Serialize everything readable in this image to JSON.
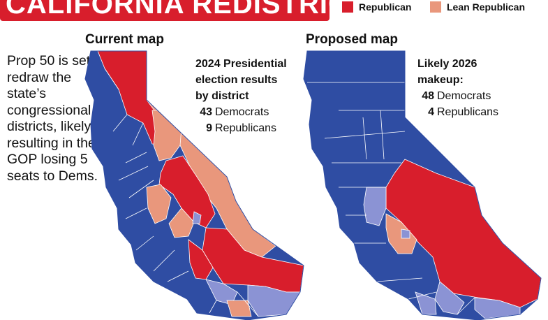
{
  "banner": {
    "title": "CALIFORNIA REDISTRICTING"
  },
  "legend": [
    {
      "label": "Republican",
      "color": "#d81e2c"
    },
    {
      "label": "Lean Republican",
      "color": "#e9977c"
    }
  ],
  "colors": {
    "democrat": "#2f4da3",
    "lean_democrat": "#8b93d4",
    "republican": "#d81e2c",
    "lean_republican": "#e9977c",
    "district_lines": "#ffffff"
  },
  "blurb": "Prop 50 is set to redraw the state’s congressional districts, likely resulting in the GOP losing 5 seats to Dems.",
  "current_map": {
    "title": "Current map",
    "subtitle": "2024 Presidential election results by district",
    "democrats_count": "43",
    "democrats_label": "Democrats",
    "republicans_count": "9",
    "republicans_label": "Republicans"
  },
  "proposed_map": {
    "title": "Proposed map",
    "subtitle": "Likely 2026 makeup:",
    "democrats_count": "48",
    "democrats_label": "Democrats",
    "republicans_count": "4",
    "republicans_label": "Republicans"
  }
}
